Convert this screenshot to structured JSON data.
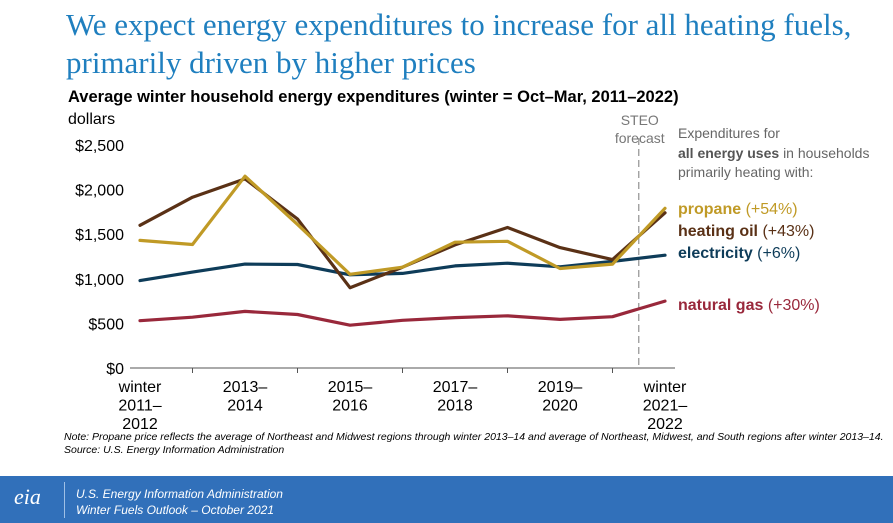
{
  "headline": "We expect energy expenditures to increase for all heating fuels, primarily driven by higher prices",
  "note": "Note: Propane price reflects the average of Northeast and Midwest regions through winter 2013–14 and average of Northeast, Midwest, and South regions after winter 2013–14.",
  "source": "Source: U.S. Energy Information Administration",
  "footer": {
    "logo": "eia",
    "agency": "U.S. Energy Information Administration",
    "report": "Winter Fuels Outlook – October 2021"
  },
  "legend": {
    "intro_pre": "Expenditures for",
    "intro_bold": "all energy uses",
    "intro_post": "in households primarily heating with:"
  },
  "colors": {
    "propane": "#c09a26",
    "heating_oil": "#5a3116",
    "electricity": "#0e3c59",
    "natural_gas": "#99283b",
    "headline": "#1f7fbf",
    "footer": "#3170ba"
  },
  "chart_data": {
    "type": "line",
    "title": "Average winter household energy expenditures (winter = Oct–Mar, 2011–2022)",
    "ylabel": "dollars",
    "ylim": [
      0,
      2500
    ],
    "yticks": [
      0,
      500,
      1000,
      1500,
      2000,
      2500
    ],
    "ytick_labels": [
      "$0",
      "$500",
      "$1,000",
      "$1,500",
      "$2,000",
      "$2,500"
    ],
    "x": [
      "2011–2012",
      "2012–2013",
      "2013–2014",
      "2014–2015",
      "2015–2016",
      "2016–2017",
      "2017–2018",
      "2018–2019",
      "2019–2020",
      "2020–2021",
      "2021–2022"
    ],
    "xtick_labels": [
      {
        "i": 0,
        "lines": [
          "winter",
          "2011–",
          "2012"
        ]
      },
      {
        "i": 2,
        "lines": [
          "2013–",
          "2014"
        ]
      },
      {
        "i": 4,
        "lines": [
          "2015–",
          "2016"
        ]
      },
      {
        "i": 6,
        "lines": [
          "2017–",
          "2018"
        ]
      },
      {
        "i": 8,
        "lines": [
          "2019–",
          "2020"
        ]
      },
      {
        "i": 10,
        "lines": [
          "winter",
          "2021–",
          "2022"
        ]
      }
    ],
    "forecast_label": [
      "STEO",
      "forecast"
    ],
    "forecast_start_index": 9.5,
    "series": [
      {
        "key": "natural_gas",
        "name": "natural gas",
        "change": "(+30%)",
        "values": [
          530,
          570,
          635,
          600,
          480,
          535,
          565,
          585,
          545,
          575,
          750
        ]
      },
      {
        "key": "electricity",
        "name": "electricity",
        "change": "(+6%)",
        "values": [
          980,
          1075,
          1165,
          1160,
          1045,
          1060,
          1145,
          1175,
          1135,
          1195,
          1265
        ]
      },
      {
        "key": "heating_oil",
        "name": "heating oil",
        "change": "(+43%)",
        "values": [
          1600,
          1915,
          2120,
          1670,
          900,
          1130,
          1380,
          1575,
          1350,
          1215,
          1740
        ]
      },
      {
        "key": "propane",
        "name": "propane",
        "change": "(+54%)",
        "values": [
          1430,
          1385,
          2150,
          1610,
          1050,
          1130,
          1410,
          1420,
          1115,
          1165,
          1790
        ]
      }
    ]
  }
}
